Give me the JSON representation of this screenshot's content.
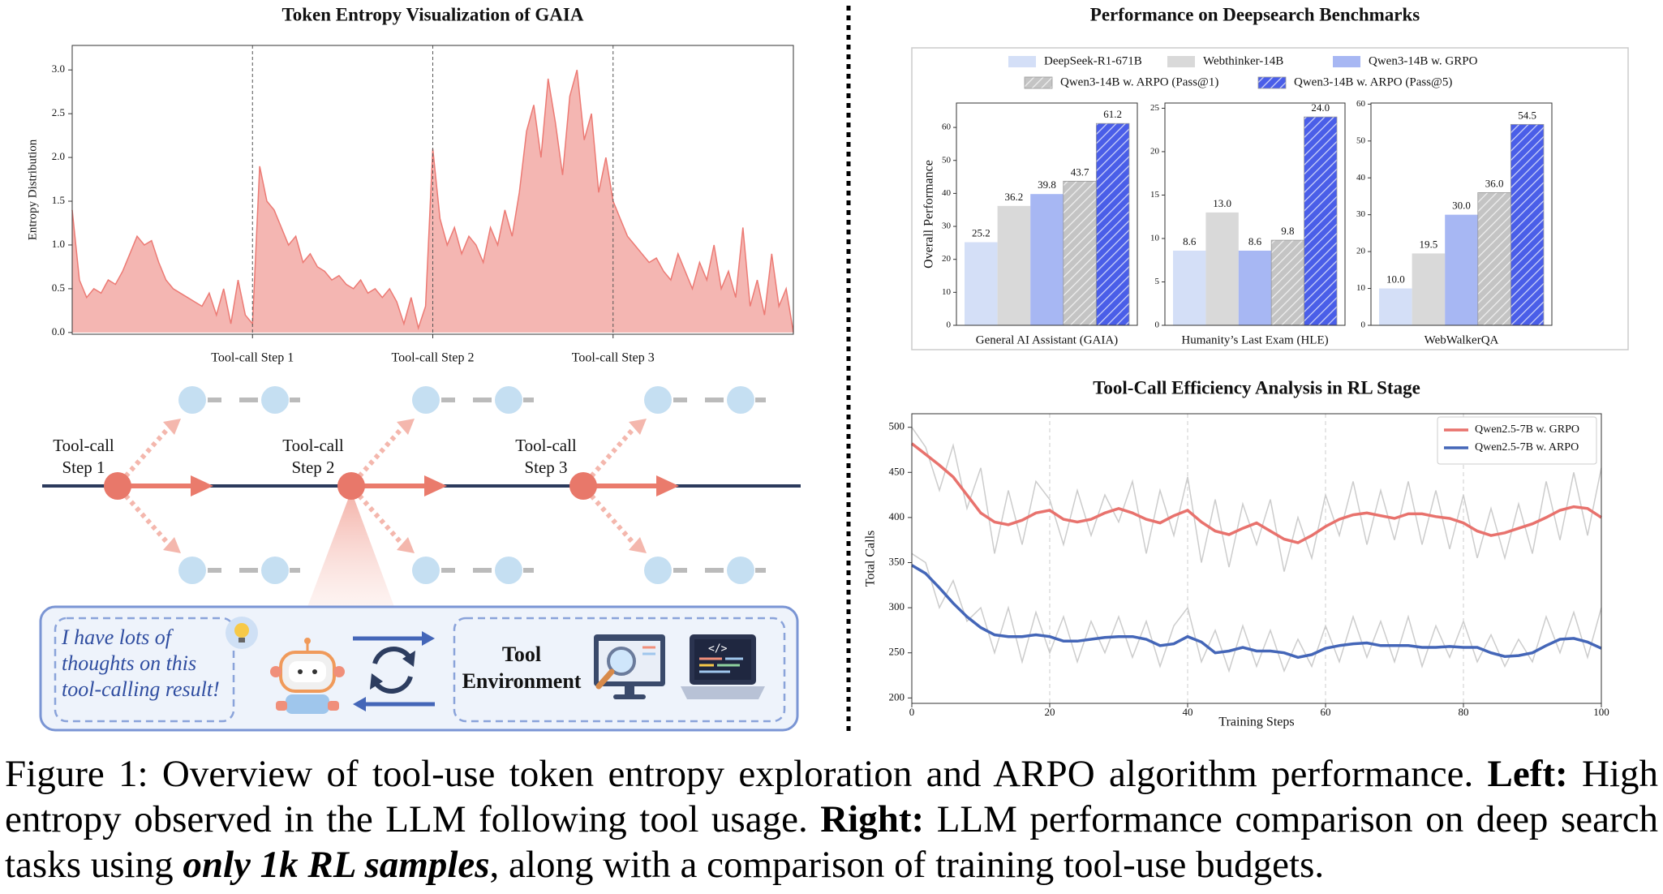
{
  "chart_data": [
    {
      "type": "area",
      "title": "Token Entropy Visualization of GAIA",
      "ylabel": "Entropy Distribution",
      "color": "#f4b6b2",
      "line_color": "#ec7a74",
      "values": [
        1.4,
        0.6,
        0.4,
        0.5,
        0.45,
        0.6,
        0.55,
        0.7,
        0.9,
        1.1,
        1.0,
        1.05,
        0.8,
        0.6,
        0.5,
        0.45,
        0.4,
        0.35,
        0.3,
        0.45,
        0.2,
        0.5,
        0.1,
        0.6,
        0.2,
        0.1,
        1.9,
        1.5,
        1.4,
        1.2,
        1.0,
        1.1,
        0.8,
        0.9,
        0.75,
        0.7,
        0.6,
        0.65,
        0.55,
        0.5,
        0.6,
        0.45,
        0.5,
        0.4,
        0.5,
        0.35,
        0.1,
        0.4,
        0.05,
        0.3,
        2.1,
        1.3,
        1.0,
        1.2,
        0.9,
        1.1,
        1.0,
        0.8,
        1.2,
        1.0,
        1.4,
        1.1,
        1.6,
        2.3,
        2.6,
        2.0,
        2.9,
        2.4,
        1.8,
        2.7,
        3.0,
        2.2,
        2.5,
        1.6,
        2.0,
        1.5,
        1.3,
        1.1,
        1.0,
        0.9,
        0.8,
        0.85,
        0.7,
        0.6,
        0.9,
        0.7,
        0.5,
        0.8,
        0.6,
        1.0,
        0.5,
        0.7,
        0.4,
        1.2,
        0.3,
        0.6,
        0.2,
        0.9,
        0.3,
        0.5,
        0.0
      ],
      "xlim": [
        0,
        100
      ],
      "xticks": [
        {
          "value": 25,
          "label": "Tool-call Step 1"
        },
        {
          "value": 50,
          "label": "Tool-call Step 2"
        },
        {
          "value": 75,
          "label": "Tool-call Step 3"
        }
      ],
      "ylim": [
        -0.02,
        3.28
      ],
      "yticks": [
        {
          "value": 0,
          "label": "0.0"
        },
        0.5,
        {
          "value": 1,
          "label": "1.0"
        },
        1.5,
        {
          "value": 2,
          "label": "2.0"
        },
        2.5,
        {
          "value": 3,
          "label": "3.0"
        }
      ]
    },
    {
      "type": "bar-panels",
      "title": "Performance on Deepsearch Benchmarks",
      "ylabel": "Overall Performance",
      "categories": [
        "General AI Assistant (GAIA)",
        "Humanity’s Last Exam (HLE)",
        "WebWalkerQA"
      ],
      "ylims": [
        [
          0,
          67.4
        ],
        [
          0,
          25.6
        ],
        [
          0,
          60.3
        ]
      ],
      "yticks": [
        [
          0,
          10,
          20,
          30,
          40,
          50,
          60
        ],
        [
          0,
          5,
          10,
          15,
          20,
          25
        ],
        [
          0,
          10,
          20,
          30,
          40,
          50,
          60
        ]
      ],
      "series": [
        {
          "name": "DeepSeek-R1-671B",
          "color": "#d4dff7",
          "hatch": false,
          "values": [
            25.2,
            8.6,
            10.0
          ],
          "value_labels": [
            "25.2",
            "8.6",
            "10.0"
          ]
        },
        {
          "name": "Webthinker-14B",
          "color": "#d9d9d9",
          "hatch": false,
          "values": [
            36.2,
            13.0,
            19.5
          ],
          "value_labels": [
            "36.2",
            "13.0",
            "19.5"
          ]
        },
        {
          "name": "Qwen3-14B w. GRPO",
          "color": "#a7b7f3",
          "hatch": false,
          "values": [
            39.8,
            8.6,
            30.0
          ],
          "value_labels": [
            "39.8",
            "8.6",
            "30.0"
          ]
        },
        {
          "name": "Qwen3-14B w. ARPO (Pass@1)",
          "color": "#c4c4c4",
          "hatch": true,
          "values": [
            43.7,
            9.8,
            36.0
          ],
          "value_labels": [
            "43.7",
            "9.8",
            "36.0"
          ]
        },
        {
          "name": "Qwen3-14B w. ARPO (Pass@5)",
          "color": "#4a5ee8",
          "hatch": true,
          "values": [
            61.2,
            24.0,
            54.5
          ],
          "value_labels": [
            "61.2",
            "24.0",
            "54.5"
          ]
        }
      ]
    },
    {
      "type": "line",
      "title": "Tool-Call Efficiency Analysis in RL Stage",
      "xlabel": "Training Steps",
      "ylabel": "Total Calls",
      "grid": "x",
      "legend": "upper right",
      "raw_color": "#cccccc",
      "x": [
        0,
        2,
        4,
        6,
        8,
        10,
        12,
        14,
        16,
        18,
        20,
        22,
        24,
        26,
        28,
        30,
        32,
        34,
        36,
        38,
        40,
        42,
        44,
        46,
        48,
        50,
        52,
        54,
        56,
        58,
        60,
        62,
        64,
        66,
        68,
        70,
        72,
        74,
        76,
        78,
        80,
        82,
        84,
        86,
        88,
        90,
        92,
        94,
        96,
        98,
        100
      ],
      "xlim": [
        0,
        100
      ],
      "xticks": [
        0,
        20,
        40,
        60,
        80,
        100
      ],
      "ylim": [
        194,
        515
      ],
      "yticks": [
        200,
        250,
        300,
        350,
        400,
        450,
        500
      ],
      "series": [
        {
          "name": "Qwen2.5-7B w. GRPO",
          "color": "#e8726d",
          "values": [
            482,
            470,
            458,
            445,
            425,
            405,
            395,
            392,
            397,
            405,
            408,
            398,
            395,
            398,
            405,
            410,
            405,
            398,
            394,
            402,
            408,
            395,
            385,
            381,
            388,
            394,
            385,
            376,
            372,
            380,
            390,
            398,
            403,
            405,
            402,
            399,
            404,
            404,
            401,
            399,
            394,
            385,
            380,
            383,
            388,
            393,
            400,
            408,
            412,
            410,
            400
          ],
          "raw_values": [
            500,
            478,
            430,
            480,
            410,
            455,
            360,
            430,
            370,
            440,
            420,
            370,
            430,
            380,
            425,
            395,
            440,
            360,
            430,
            380,
            445,
            350,
            420,
            345,
            415,
            370,
            420,
            340,
            400,
            355,
            425,
            380,
            440,
            370,
            430,
            375,
            440,
            370,
            430,
            365,
            425,
            355,
            410,
            355,
            415,
            360,
            440,
            375,
            450,
            380,
            455
          ]
        },
        {
          "name": "Qwen2.5-7B w. ARPO",
          "color": "#4466b8",
          "values": [
            347,
            338,
            322,
            305,
            290,
            278,
            270,
            268,
            268,
            270,
            268,
            263,
            263,
            265,
            267,
            268,
            268,
            265,
            258,
            260,
            268,
            262,
            250,
            252,
            256,
            252,
            252,
            250,
            245,
            248,
            255,
            258,
            260,
            261,
            258,
            258,
            258,
            256,
            256,
            257,
            256,
            256,
            250,
            246,
            247,
            250,
            258,
            265,
            266,
            262,
            255
          ],
          "raw_values": [
            360,
            350,
            300,
            330,
            285,
            300,
            250,
            300,
            240,
            295,
            250,
            290,
            240,
            285,
            250,
            290,
            245,
            285,
            235,
            280,
            300,
            240,
            275,
            230,
            280,
            235,
            275,
            230,
            265,
            235,
            280,
            240,
            290,
            245,
            285,
            240,
            290,
            235,
            280,
            245,
            285,
            240,
            270,
            235,
            265,
            240,
            290,
            250,
            295,
            245,
            300
          ]
        }
      ]
    }
  ],
  "diagram": {
    "steps": [
      "Tool-call Step 1",
      "Tool-call Step 2",
      "Tool-call Step 3"
    ],
    "thought": "I have lots of thoughts on this tool-calling result!",
    "environment": "Tool Environment"
  },
  "caption": {
    "parts": [
      {
        "text": "Figure 1: Overview of tool-use token entropy exploration and ARPO algorithm performance. ",
        "style": "normal"
      },
      {
        "text": "Left:",
        "style": "bold"
      },
      {
        "text": " High entropy observed in the LLM following tool usage. ",
        "style": "normal"
      },
      {
        "text": "Right:",
        "style": "bold"
      },
      {
        "text": " LLM performance comparison on deep search tasks using ",
        "style": "normal"
      },
      {
        "text": "only 1k RL samples",
        "style": "bold-italic"
      },
      {
        "text": ", along with a comparison of training tool-use budgets.",
        "style": "normal"
      }
    ]
  }
}
